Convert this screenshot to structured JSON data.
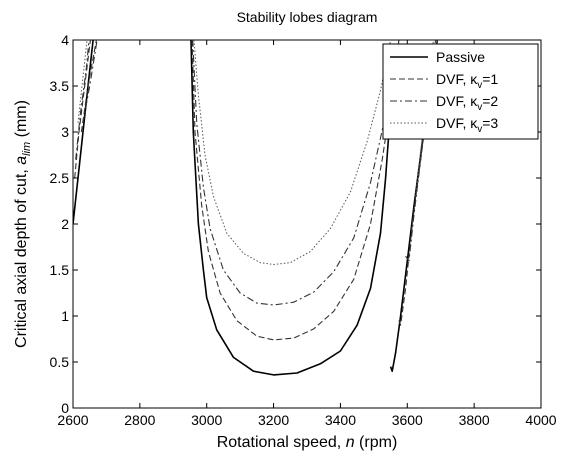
{
  "chart_data": {
    "type": "line",
    "title": "Stability lobes diagram",
    "xlabel_prefix": "Rotational speed, ",
    "xlabel_var": "n",
    "xlabel_suffix": " (rpm)",
    "ylabel_prefix": "Critical axial depth of cut, ",
    "ylabel_var": "a",
    "ylabel_sub": "lim",
    "ylabel_suffix": " (mm)",
    "xlim": [
      2600,
      4000
    ],
    "ylim": [
      0,
      4
    ],
    "xticks": [
      "2600",
      "2800",
      "3000",
      "3200",
      "3400",
      "3600",
      "3800",
      "4000"
    ],
    "yticks": [
      "0",
      "0.5",
      "1",
      "1.5",
      "2",
      "2.5",
      "3",
      "3.5",
      "4"
    ],
    "grid": false,
    "legend_position": "top-right",
    "legend": [
      {
        "prefix": "Passive",
        "kappa": "",
        "sub": "",
        "value": "",
        "dash": ""
      },
      {
        "prefix": "DVF, ",
        "kappa": "κ",
        "sub": "v",
        "value": "=1",
        "dash": "6 3"
      },
      {
        "prefix": "DVF, ",
        "kappa": "κ",
        "sub": "v",
        "value": "=2",
        "dash": "7 3 2 3"
      },
      {
        "prefix": "DVF, ",
        "kappa": "κ",
        "sub": "v",
        "value": "=3",
        "dash": "1.5 2"
      }
    ],
    "series": [
      {
        "name": "Passive",
        "dash": "",
        "segments": [
          [
            [
              2600,
              2.0
            ],
            [
              2615,
              2.5
            ],
            [
              2630,
              3.0
            ],
            [
              2645,
              3.5
            ],
            [
              2660,
              4.0
            ]
          ],
          [
            [
              2953,
              4.0
            ],
            [
              2960,
              3.0
            ],
            [
              2975,
              2.0
            ],
            [
              2990,
              1.5
            ],
            [
              3000,
              1.2
            ],
            [
              3030,
              0.85
            ],
            [
              3080,
              0.55
            ],
            [
              3140,
              0.4
            ],
            [
              3200,
              0.36
            ],
            [
              3270,
              0.38
            ],
            [
              3340,
              0.48
            ],
            [
              3400,
              0.62
            ],
            [
              3450,
              0.9
            ],
            [
              3490,
              1.3
            ],
            [
              3520,
              1.9
            ],
            [
              3535,
              2.5
            ],
            [
              3545,
              3.0
            ],
            [
              3550,
              3.4
            ]
          ],
          [
            [
              3550,
              0.45
            ],
            [
              3555,
              0.4
            ],
            [
              3565,
              0.6
            ],
            [
              3580,
              1.0
            ],
            [
              3600,
              1.6
            ],
            [
              3620,
              2.2
            ],
            [
              3640,
              2.75
            ],
            [
              3660,
              3.3
            ],
            [
              3690,
              4.0
            ]
          ]
        ]
      },
      {
        "name": "DVF, κv=1",
        "dash": "6 3",
        "segments": [
          [
            [
              2605,
              2.5
            ],
            [
              2618,
              3.0
            ],
            [
              2635,
              3.5
            ],
            [
              2652,
              4.0
            ]
          ],
          [
            [
              2625,
              3.0
            ],
            [
              2645,
              3.5
            ],
            [
              2670,
              4.0
            ]
          ],
          [
            [
              2956,
              4.0
            ],
            [
              2965,
              3.0
            ],
            [
              2985,
              2.2
            ],
            [
              3005,
              1.7
            ],
            [
              3040,
              1.25
            ],
            [
              3090,
              0.95
            ],
            [
              3150,
              0.78
            ],
            [
              3200,
              0.74
            ],
            [
              3260,
              0.76
            ],
            [
              3320,
              0.86
            ],
            [
              3380,
              1.05
            ],
            [
              3440,
              1.4
            ],
            [
              3490,
              2.0
            ],
            [
              3525,
              2.7
            ],
            [
              3550,
              3.3
            ],
            [
              3575,
              4.0
            ]
          ],
          [
            [
              3575,
              0.95
            ],
            [
              3580,
              0.9
            ],
            [
              3595,
              1.3
            ],
            [
              3615,
              2.0
            ],
            [
              3640,
              2.7
            ],
            [
              3665,
              3.4
            ],
            [
              3690,
              4.0
            ]
          ]
        ]
      },
      {
        "name": "DVF, κv=2",
        "dash": "7 3 2 3",
        "segments": [
          [
            [
              2608,
              2.7
            ],
            [
              2622,
              3.2
            ],
            [
              2640,
              3.7
            ],
            [
              2648,
              4.0
            ]
          ],
          [
            [
              2630,
              3.1
            ],
            [
              2650,
              3.5
            ],
            [
              2672,
              4.0
            ]
          ],
          [
            [
              2958,
              4.0
            ],
            [
              2970,
              3.1
            ],
            [
              2990,
              2.4
            ],
            [
              3010,
              1.95
            ],
            [
              3050,
              1.5
            ],
            [
              3100,
              1.25
            ],
            [
              3150,
              1.14
            ],
            [
              3200,
              1.12
            ],
            [
              3260,
              1.15
            ],
            [
              3320,
              1.26
            ],
            [
              3380,
              1.48
            ],
            [
              3440,
              1.85
            ],
            [
              3490,
              2.45
            ],
            [
              3530,
              3.1
            ],
            [
              3560,
              3.7
            ],
            [
              3575,
              4.0
            ]
          ],
          [
            [
              3595,
              1.65
            ],
            [
              3605,
              1.6
            ],
            [
              3620,
              2.1
            ],
            [
              3640,
              2.7
            ],
            [
              3660,
              3.3
            ],
            [
              3680,
              3.9
            ],
            [
              3685,
              4.0
            ]
          ]
        ]
      },
      {
        "name": "DVF, κv=3",
        "dash": "1.5 2",
        "segments": [
          [
            [
              2615,
              3.1
            ],
            [
              2630,
              3.6
            ],
            [
              2642,
              4.0
            ]
          ],
          [
            [
              2962,
              4.0
            ],
            [
              2975,
              3.4
            ],
            [
              2995,
              2.75
            ],
            [
              3020,
              2.3
            ],
            [
              3060,
              1.9
            ],
            [
              3110,
              1.68
            ],
            [
              3160,
              1.58
            ],
            [
              3200,
              1.56
            ],
            [
              3250,
              1.58
            ],
            [
              3310,
              1.7
            ],
            [
              3370,
              1.95
            ],
            [
              3430,
              2.35
            ],
            [
              3480,
              2.9
            ],
            [
              3520,
              3.45
            ],
            [
              3550,
              4.0
            ]
          ],
          [
            [
              3625,
              2.3
            ],
            [
              3640,
              2.8
            ],
            [
              3660,
              3.4
            ],
            [
              3678,
              4.0
            ]
          ]
        ]
      }
    ]
  }
}
